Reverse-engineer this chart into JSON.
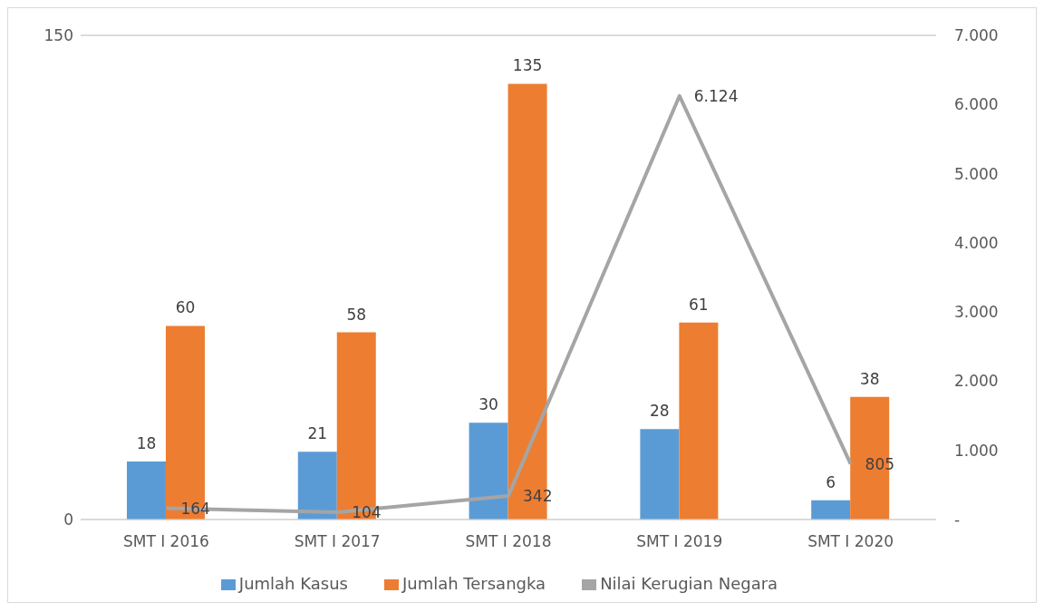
{
  "chart_data": {
    "type": "bar",
    "categories": [
      "SMT I 2016",
      "SMT I 2017",
      "SMT I 2018",
      "SMT I 2019",
      "SMT I 2020"
    ],
    "series": [
      {
        "name": "Jumlah Kasus",
        "color": "#5b9bd5",
        "values": [
          18,
          21,
          30,
          28,
          6
        ],
        "value_labels": [
          "18",
          "21",
          "30",
          "28",
          "6"
        ]
      },
      {
        "name": "Jumlah Tersangka",
        "color": "#ed7d31",
        "values": [
          60,
          58,
          135,
          61,
          38
        ],
        "value_labels": [
          "60",
          "58",
          "135",
          "61",
          "38"
        ]
      },
      {
        "name": "Nilai Kerugian Negara",
        "type": "line",
        "axis": "y2",
        "color": "#a5a5a5",
        "values": [
          164,
          104,
          342,
          6124,
          805
        ],
        "value_labels": [
          "164",
          "104",
          "342",
          "6.124",
          "805"
        ]
      }
    ],
    "ylim": [
      0,
      150
    ],
    "yticks": [
      0,
      150
    ],
    "y2lim": [
      0,
      7000
    ],
    "y2ticks": [
      {
        "value": 0,
        "label": "-"
      },
      {
        "value": 1000,
        "label": "1.000"
      },
      {
        "value": 2000,
        "label": "2.000"
      },
      {
        "value": 3000,
        "label": "3.000"
      },
      {
        "value": 4000,
        "label": "4.000"
      },
      {
        "value": 5000,
        "label": "5.000"
      },
      {
        "value": 6000,
        "label": "6.000"
      },
      {
        "value": 7000,
        "label": "7.000"
      }
    ],
    "grid": "y",
    "legend": "bottom",
    "marker": "none",
    "line_style": "solid"
  }
}
